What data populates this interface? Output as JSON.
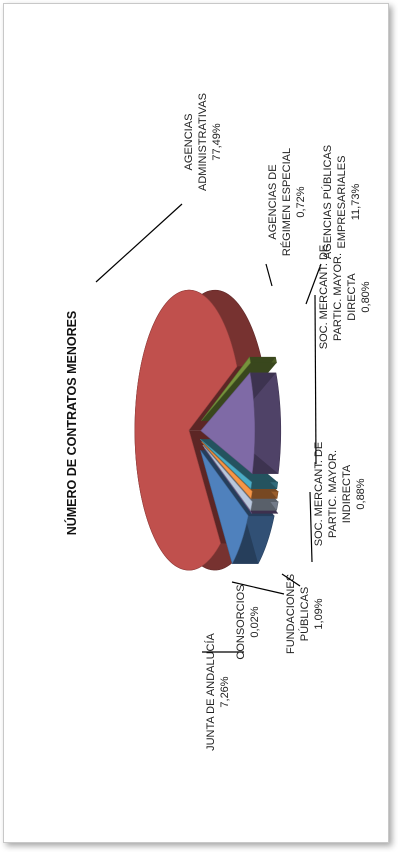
{
  "chart_data": {
    "type": "pie",
    "title": "NÚMERO DE CONTRATOS MENORES",
    "categories": [
      "AGENCIAS ADMINISTRATIVAS",
      "AGENCIAS DE RÉGIMEN ESPECIAL",
      "AGENCIAS PÚBLICAS EMPRESARIALES",
      "SOC. MERCANT. DE PARTIC. MAYOR. DIRECTA",
      "SOC. MERCANT. DE PARTIC. MAYOR. INDIRECTA",
      "FUNDACIONES PÚBLICAS",
      "CONSORCIOS",
      "JUNTA DE ANDALUCÍA"
    ],
    "values": [
      77.49,
      0.72,
      11.73,
      0.8,
      0.88,
      1.09,
      0.02,
      7.26
    ],
    "value_labels": [
      "77,49%",
      "0,72%",
      "11,73%",
      "0,80%",
      "0,88%",
      "1,09%",
      "0,02%",
      "7,26%"
    ],
    "label_lines": [
      [
        "AGENCIAS",
        "ADMINISTRATIVAS",
        "77,49%"
      ],
      [
        "AGENCIAS DE",
        "RÉGIMEN ESPECIAL",
        "0,72%"
      ],
      [
        "AGENCIAS PÚBLICAS",
        "EMPRESARIALES",
        "11,73%"
      ],
      [
        "SOC. MERCANT. DE",
        "PARTIC. MAYOR.",
        "DIRECTA",
        "0,80%"
      ],
      [
        "SOC. MERCANT. DE",
        "PARTIC. MAYOR.",
        "INDIRECTA",
        "0,88%"
      ],
      [
        "FUNDACIONES",
        "PÚBLICAS",
        "1,09%"
      ],
      [
        "CONSORCIOS",
        "0,02%"
      ],
      [
        "JUNTA DE ANDALUCÍA",
        "7,26%"
      ]
    ],
    "colors": [
      "#c0504d",
      "#77933c",
      "#7f6aa6",
      "#4bacc6",
      "#f79646",
      "#b9c7dd",
      "#8064a2",
      "#4f81bd"
    ],
    "legend": "none",
    "grid": false,
    "orientation": "rotated-90-ccw",
    "style": "3d-exploded"
  }
}
